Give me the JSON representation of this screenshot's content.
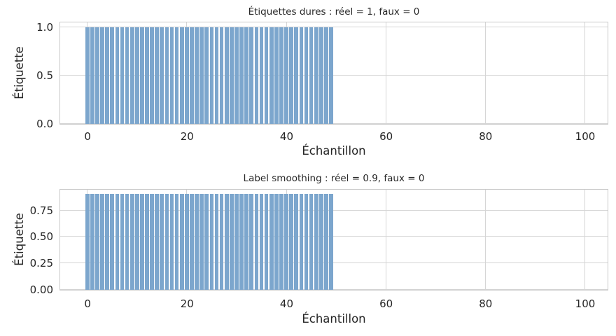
{
  "figure": {
    "background": "#ffffff",
    "text_color": "#262626",
    "grid_color": "#d5d5d5",
    "spine_color": "#c8c8c8",
    "bar_color": "#7CA6CD"
  },
  "chart_data": [
    {
      "type": "bar",
      "title": "Étiquettes dures : réel = 1, faux = 0",
      "xlabel": "Échantillon",
      "ylabel": "Étiquette",
      "categories_note": "x = sample index 0..99; real samples 0-49 labeled 1, fake samples 50-99 labeled 0",
      "values": [
        1,
        1,
        1,
        1,
        1,
        1,
        1,
        1,
        1,
        1,
        1,
        1,
        1,
        1,
        1,
        1,
        1,
        1,
        1,
        1,
        1,
        1,
        1,
        1,
        1,
        1,
        1,
        1,
        1,
        1,
        1,
        1,
        1,
        1,
        1,
        1,
        1,
        1,
        1,
        1,
        1,
        1,
        1,
        1,
        1,
        1,
        1,
        1,
        1,
        1,
        0,
        0,
        0,
        0,
        0,
        0,
        0,
        0,
        0,
        0,
        0,
        0,
        0,
        0,
        0,
        0,
        0,
        0,
        0,
        0,
        0,
        0,
        0,
        0,
        0,
        0,
        0,
        0,
        0,
        0,
        0,
        0,
        0,
        0,
        0,
        0,
        0,
        0,
        0,
        0,
        0,
        0,
        0,
        0,
        0,
        0,
        0,
        0,
        0,
        0
      ],
      "xticks": [
        0,
        20,
        40,
        60,
        80,
        100
      ],
      "xticklabels": [
        "0",
        "20",
        "40",
        "60",
        "80",
        "100"
      ],
      "yticks": [
        0.0,
        0.5,
        1.0
      ],
      "yticklabels": [
        "0.0",
        "0.5",
        "1.0"
      ],
      "xlim": [
        -5.5,
        104.5
      ],
      "ylim": [
        0,
        1.05
      ],
      "grid": true,
      "legend": null
    },
    {
      "type": "bar",
      "title": "Label smoothing : réel = 0.9, faux = 0",
      "xlabel": "Échantillon",
      "ylabel": "Étiquette",
      "categories_note": "x = sample index 0..99; real samples 0-49 labeled 0.9, fake samples 50-99 labeled 0",
      "values": [
        0.9,
        0.9,
        0.9,
        0.9,
        0.9,
        0.9,
        0.9,
        0.9,
        0.9,
        0.9,
        0.9,
        0.9,
        0.9,
        0.9,
        0.9,
        0.9,
        0.9,
        0.9,
        0.9,
        0.9,
        0.9,
        0.9,
        0.9,
        0.9,
        0.9,
        0.9,
        0.9,
        0.9,
        0.9,
        0.9,
        0.9,
        0.9,
        0.9,
        0.9,
        0.9,
        0.9,
        0.9,
        0.9,
        0.9,
        0.9,
        0.9,
        0.9,
        0.9,
        0.9,
        0.9,
        0.9,
        0.9,
        0.9,
        0.9,
        0.9,
        0,
        0,
        0,
        0,
        0,
        0,
        0,
        0,
        0,
        0,
        0,
        0,
        0,
        0,
        0,
        0,
        0,
        0,
        0,
        0,
        0,
        0,
        0,
        0,
        0,
        0,
        0,
        0,
        0,
        0,
        0,
        0,
        0,
        0,
        0,
        0,
        0,
        0,
        0,
        0,
        0,
        0,
        0,
        0,
        0,
        0,
        0,
        0,
        0,
        0
      ],
      "xticks": [
        0,
        20,
        40,
        60,
        80,
        100
      ],
      "xticklabels": [
        "0",
        "20",
        "40",
        "60",
        "80",
        "100"
      ],
      "yticks": [
        0.0,
        0.25,
        0.5,
        0.75
      ],
      "yticklabels": [
        "0.00",
        "0.25",
        "0.50",
        "0.75"
      ],
      "xlim": [
        -5.5,
        104.5
      ],
      "ylim": [
        0,
        0.945
      ],
      "grid": true,
      "legend": null
    }
  ]
}
